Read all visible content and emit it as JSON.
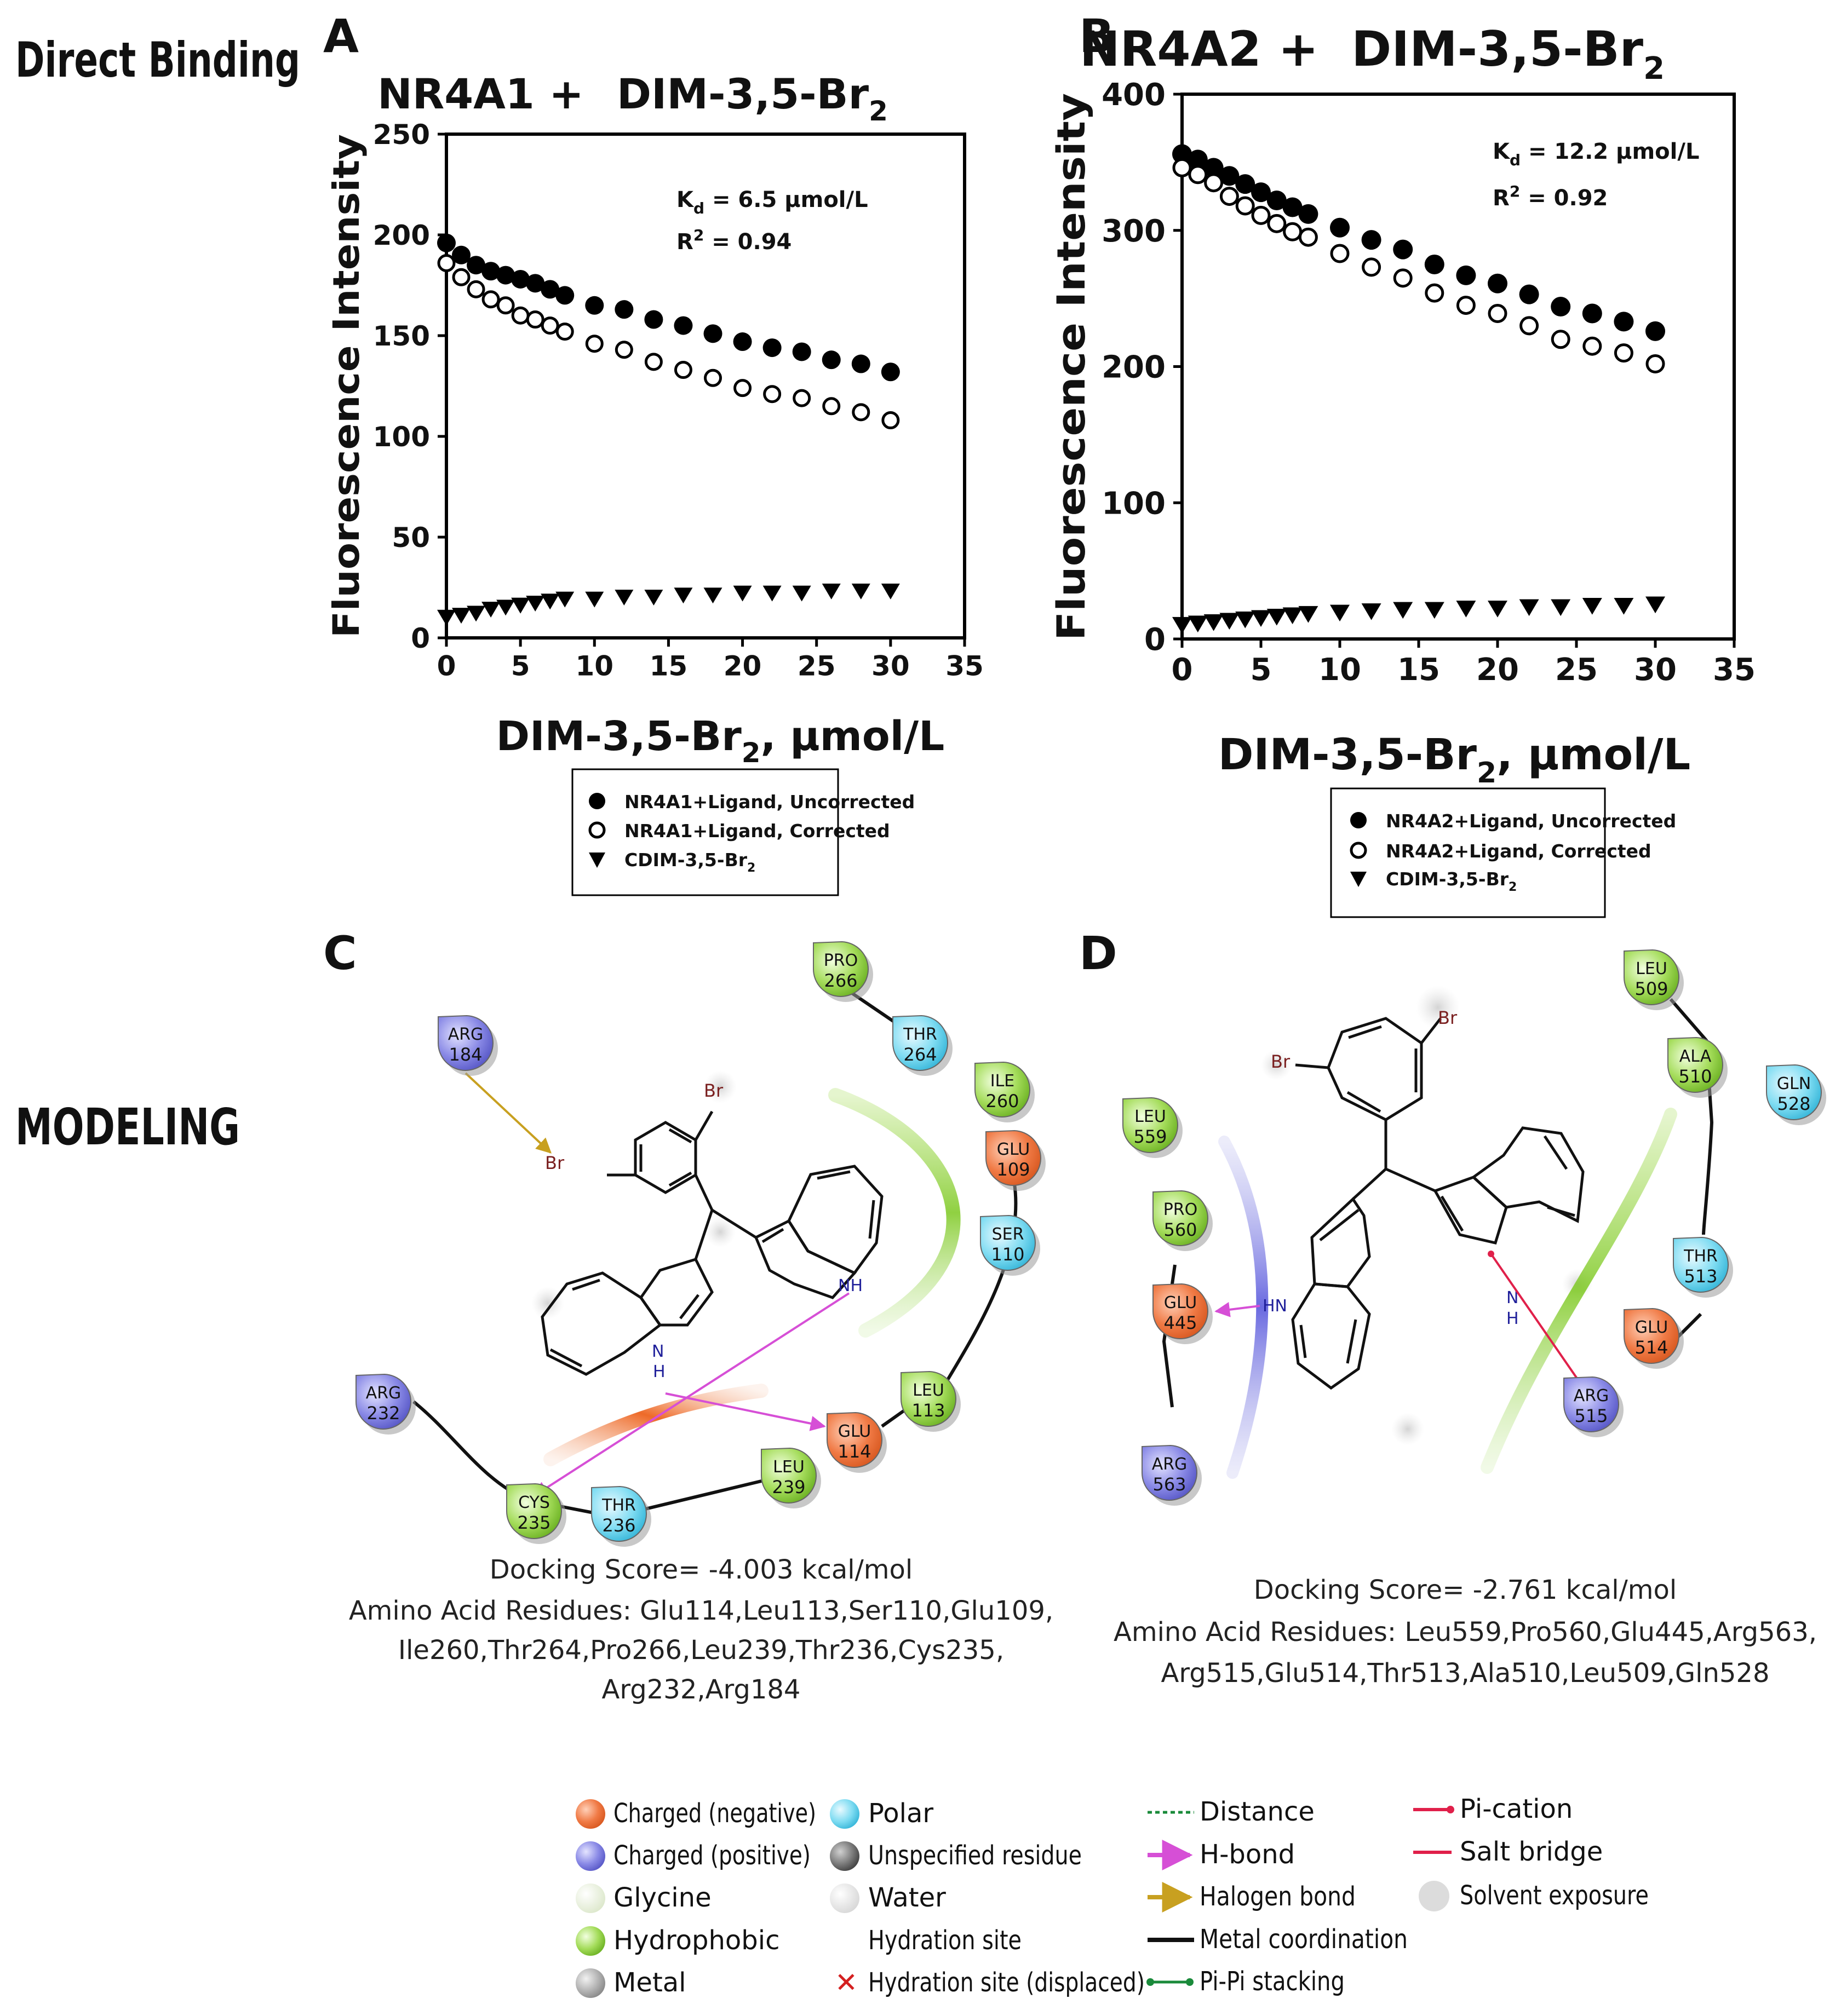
{
  "labels": {
    "direct_binding": "Direct Binding",
    "modeling": "MODELING",
    "panel_a": "A",
    "panel_b": "B",
    "panel_c": "C",
    "panel_d": "D"
  },
  "chart_data": [
    {
      "type": "scatter",
      "panel": "A",
      "title_protein": "NR4A1 +",
      "title_ligand": "DIM-3,5-Br",
      "title_sub": "2",
      "xlabel_main": "DIM-3,5-Br",
      "xlabel_sub": "2",
      "xlabel_tail": ", μmol/L",
      "ylabel": "Fluorescence Intensity",
      "xlim": [
        0,
        35
      ],
      "ylim": [
        0,
        250
      ],
      "xticks": [
        "0",
        "5",
        "10",
        "15",
        "20",
        "25",
        "30",
        "35"
      ],
      "yticks": [
        "0",
        "50",
        "100",
        "150",
        "200",
        "250"
      ],
      "kd_label": "K",
      "kd_sub": "d",
      "kd_value": " = 6.5 μmol/L",
      "r2_label": "R",
      "r2_sup": "2",
      "r2_value": " = 0.94",
      "x": [
        0,
        1,
        2,
        3,
        4,
        5,
        6,
        7,
        8,
        10,
        12,
        14,
        16,
        18,
        20,
        22,
        24,
        26,
        28,
        30
      ],
      "series": [
        {
          "name": "NR4A1+Ligand, Uncorrected",
          "marker": "filled-circle",
          "values": [
            196,
            190,
            185,
            182,
            180,
            178,
            176,
            173,
            170,
            165,
            163,
            158,
            155,
            151,
            147,
            144,
            142,
            138,
            136,
            132
          ]
        },
        {
          "name": "NR4A1+Ligand, Corrected",
          "marker": "open-circle",
          "values": [
            186,
            179,
            173,
            168,
            165,
            160,
            158,
            155,
            152,
            146,
            143,
            137,
            133,
            129,
            124,
            121,
            119,
            115,
            112,
            108
          ]
        },
        {
          "name": "CDIM-3,5-Br",
          "name_sub": "2",
          "marker": "filled-triangle-down",
          "values": [
            10,
            11,
            12,
            14,
            15,
            16,
            17,
            18,
            19,
            19,
            20,
            20,
            21,
            21,
            22,
            22,
            22,
            23,
            23,
            23
          ]
        }
      ]
    },
    {
      "type": "scatter",
      "panel": "B",
      "title_protein": "NR4A2 +",
      "title_ligand": "DIM-3,5-Br",
      "title_sub": "2",
      "xlabel_main": "DIM-3,5-Br",
      "xlabel_sub": "2",
      "xlabel_tail": ", μmol/L",
      "ylabel": "Fluorescence Intensity",
      "xlim": [
        0,
        35
      ],
      "ylim": [
        0,
        400
      ],
      "xticks": [
        "0",
        "5",
        "10",
        "15",
        "20",
        "25",
        "30",
        "35"
      ],
      "yticks": [
        "0",
        "100",
        "200",
        "300",
        "400"
      ],
      "kd_label": "K",
      "kd_sub": "d",
      "kd_value": " = 12.2 μmol/L",
      "r2_label": "R",
      "r2_sup": "2",
      "r2_value": " = 0.92",
      "x": [
        0,
        1,
        2,
        3,
        4,
        5,
        6,
        7,
        8,
        10,
        12,
        14,
        16,
        18,
        20,
        22,
        24,
        26,
        28,
        30
      ],
      "series": [
        {
          "name": "NR4A2+Ligand, Uncorrected",
          "marker": "filled-circle",
          "values": [
            356,
            352,
            346,
            340,
            334,
            328,
            322,
            317,
            312,
            302,
            293,
            286,
            275,
            267,
            261,
            253,
            244,
            239,
            233,
            226
          ]
        },
        {
          "name": "NR4A2+Ligand, Corrected",
          "marker": "open-circle",
          "values": [
            346,
            341,
            335,
            325,
            318,
            311,
            305,
            299,
            295,
            283,
            273,
            265,
            254,
            245,
            239,
            230,
            220,
            215,
            210,
            202
          ]
        },
        {
          "name": "CDIM-3,5-Br",
          "name_sub": "2",
          "marker": "filled-triangle-down",
          "values": [
            10,
            11,
            12,
            13,
            14,
            15,
            16,
            17,
            18,
            19,
            20,
            21,
            21,
            22,
            22,
            23,
            23,
            24,
            24,
            25
          ]
        }
      ]
    }
  ],
  "panel_c": {
    "residues": [
      {
        "id": "arg184",
        "name": "ARG",
        "num": "184",
        "type": "positive"
      },
      {
        "id": "pro266",
        "name": "PRO",
        "num": "266",
        "type": "hydrophobic"
      },
      {
        "id": "thr264",
        "name": "THR",
        "num": "264",
        "type": "polar"
      },
      {
        "id": "ile260",
        "name": "ILE",
        "num": "260",
        "type": "hydrophobic"
      },
      {
        "id": "glu109",
        "name": "GLU",
        "num": "109",
        "type": "negative"
      },
      {
        "id": "ser110",
        "name": "SER",
        "num": "110",
        "type": "polar"
      },
      {
        "id": "leu113",
        "name": "LEU",
        "num": "113",
        "type": "hydrophobic"
      },
      {
        "id": "glu114",
        "name": "GLU",
        "num": "114",
        "type": "negative"
      },
      {
        "id": "leu239",
        "name": "LEU",
        "num": "239",
        "type": "hydrophobic"
      },
      {
        "id": "thr236",
        "name": "THR",
        "num": "236",
        "type": "polar"
      },
      {
        "id": "cys235",
        "name": "CYS",
        "num": "235",
        "type": "hydrophobic"
      },
      {
        "id": "arg232",
        "name": "ARG",
        "num": "232",
        "type": "positive"
      }
    ],
    "atoms": {
      "br1": "Br",
      "br2": "Br",
      "nh1": "NH",
      "nh2_n": "N",
      "nh2_h": "H"
    },
    "docking_score": "Docking Score=  -4.003 kcal/mol",
    "residues_line1": "Amino Acid Residues: Glu114,Leu113,Ser110,Glu109,",
    "residues_line2": "Ile260,Thr264,Pro266,Leu239,Thr236,Cys235,",
    "residues_line3": "Arg232,Arg184"
  },
  "panel_d": {
    "residues": [
      {
        "id": "leu509",
        "name": "LEU",
        "num": "509",
        "type": "hydrophobic"
      },
      {
        "id": "ala510",
        "name": "ALA",
        "num": "510",
        "type": "hydrophobic"
      },
      {
        "id": "gln528",
        "name": "GLN",
        "num": "528",
        "type": "polar"
      },
      {
        "id": "leu559",
        "name": "LEU",
        "num": "559",
        "type": "hydrophobic"
      },
      {
        "id": "pro560",
        "name": "PRO",
        "num": "560",
        "type": "hydrophobic"
      },
      {
        "id": "glu445",
        "name": "GLU",
        "num": "445",
        "type": "negative"
      },
      {
        "id": "arg563",
        "name": "ARG",
        "num": "563",
        "type": "positive"
      },
      {
        "id": "thr513",
        "name": "THR",
        "num": "513",
        "type": "polar"
      },
      {
        "id": "glu514",
        "name": "GLU",
        "num": "514",
        "type": "negative"
      },
      {
        "id": "arg515",
        "name": "ARG",
        "num": "515",
        "type": "positive"
      }
    ],
    "atoms": {
      "br1": "Br",
      "br2": "Br",
      "hn": "HN",
      "n": "N",
      "h": "H"
    },
    "docking_score": "Docking Score= -2.761 kcal/mol",
    "residues_line1": "Amino Acid Residues: Leu559,Pro560,Glu445,Arg563,",
    "residues_line2": "Arg515,Glu514,Thr513,Ala510,Leu509,Gln528"
  },
  "key": {
    "col1": [
      "Charged (negative)",
      "Charged (positive)",
      "Glycine",
      "Hydrophobic",
      "Metal"
    ],
    "col2": [
      "Polar",
      "Unspecified residue",
      "Water",
      "Hydration site",
      "Hydration site (displaced)"
    ],
    "col3": [
      "Distance",
      "H-bond",
      "Halogen bond",
      "Metal coordination",
      "Pi-Pi stacking"
    ],
    "col4": [
      "Pi-cation",
      "Salt bridge",
      "Solvent exposure"
    ]
  },
  "colors": {
    "negative": "#f07a45",
    "positive": "#8080e0",
    "glycine": "#eef4e4",
    "hydrophobic": "#8fd13a",
    "metal": "#9a9a9a",
    "polar": "#66d4ee",
    "unspecified": "#707070",
    "water": "#e8e8e8",
    "hbond": "#d64fd6",
    "halogen": "#c8a020",
    "salt": "#e0204a",
    "pipi": "#1a8a3a",
    "distance": "#1a8a3a"
  }
}
